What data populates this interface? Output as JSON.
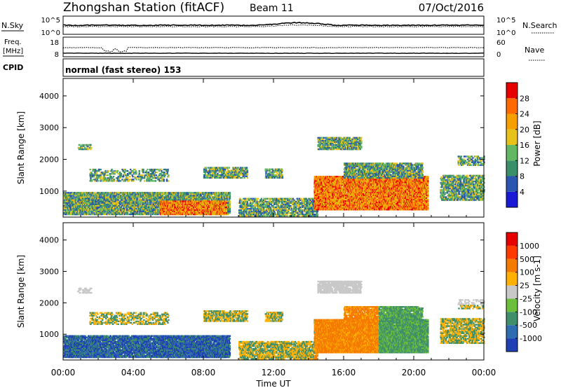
{
  "header": {
    "station": "Zhongshan Station (fitACF)",
    "beam": "Beam 11",
    "date": "07/Oct/2016"
  },
  "nsky_panel": {
    "left_label": "N.Sky",
    "left_ticks": [
      "10^5",
      "10^0"
    ],
    "right_label": "N.Search",
    "right_ticks": [
      "10^5",
      "10^0"
    ]
  },
  "freq_panel": {
    "left_label_1": "Freq.",
    "left_label_2": "[MHz]",
    "left_ticks": [
      "18",
      "8"
    ],
    "right_label": "Nave",
    "right_ticks": [
      "60",
      "0"
    ]
  },
  "cpid_panel": {
    "label": "CPID",
    "text": "normal (fast stereo) 153"
  },
  "chart_data": [
    {
      "type": "heatmap",
      "quantity": "Power",
      "ylabel": "Slant Range [km]",
      "ylim": [
        180,
        4550
      ],
      "yticks": [
        "1000",
        "2000",
        "3000",
        "4000"
      ],
      "colorbar_label": "Power [dB]",
      "colorbar_ticks": [
        "4",
        "8",
        "12",
        "16",
        "20",
        "24",
        "28"
      ],
      "colors": [
        "#1a1ad6",
        "#2a55b0",
        "#3a8e6a",
        "#62b862",
        "#e6c21a",
        "#f5a000",
        "#ff6a00",
        "#e60000"
      ]
    },
    {
      "type": "heatmap",
      "quantity": "Velocity",
      "ylabel": "Slant Range [km]",
      "ylim": [
        180,
        4550
      ],
      "yticks": [
        "1000",
        "2000",
        "3000",
        "4000"
      ],
      "colorbar_label": "Velocity [m s-1]",
      "colorbar_ticks": [
        "1000",
        "500",
        "100",
        "25",
        "-25",
        "-100",
        "-500",
        "-1000"
      ],
      "colors": [
        "#1f3fb5",
        "#2e6db0",
        "#3f8f6a",
        "#6cbf3a",
        "#c8c8c8",
        "#ffb000",
        "#f57a00",
        "#ff3a00",
        "#e60000"
      ]
    }
  ],
  "xaxis": {
    "label": "Time UT",
    "ticks": [
      "00:00",
      "04:00",
      "08:00",
      "12:00",
      "16:00",
      "20:00",
      "00:00"
    ]
  }
}
